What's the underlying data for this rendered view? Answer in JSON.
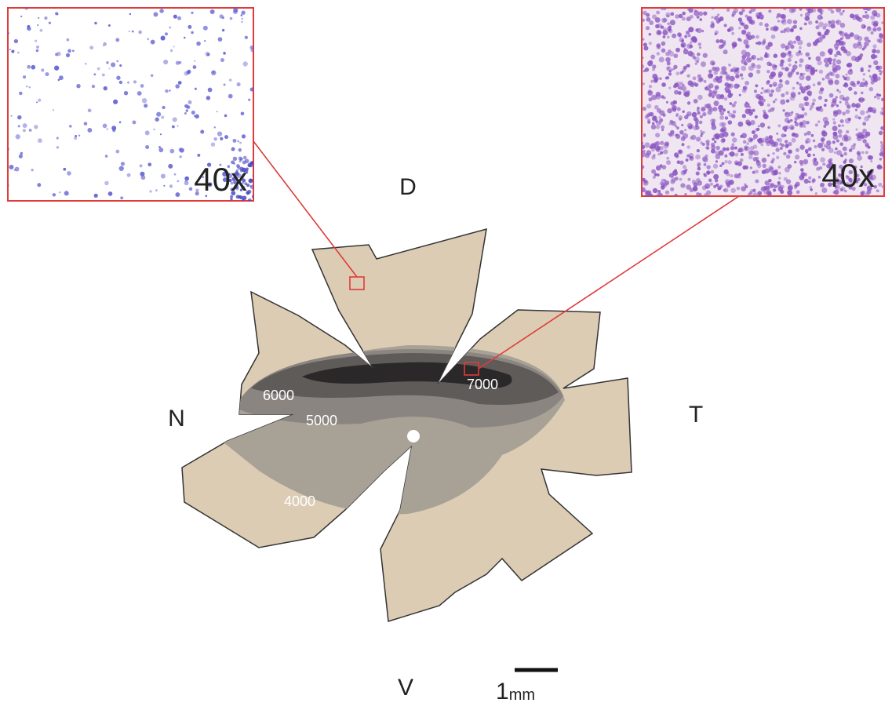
{
  "insets": [
    {
      "magnification": "40x"
    },
    {
      "magnification": "40x"
    }
  ],
  "orientation": {
    "dorsal": "D",
    "nasal": "N",
    "temporal": "T",
    "ventral": "V"
  },
  "isodensity_labels": [
    "6000",
    "5000",
    "7000",
    "4000"
  ],
  "scale_bar": {
    "number": "1",
    "unit": "mm"
  }
}
